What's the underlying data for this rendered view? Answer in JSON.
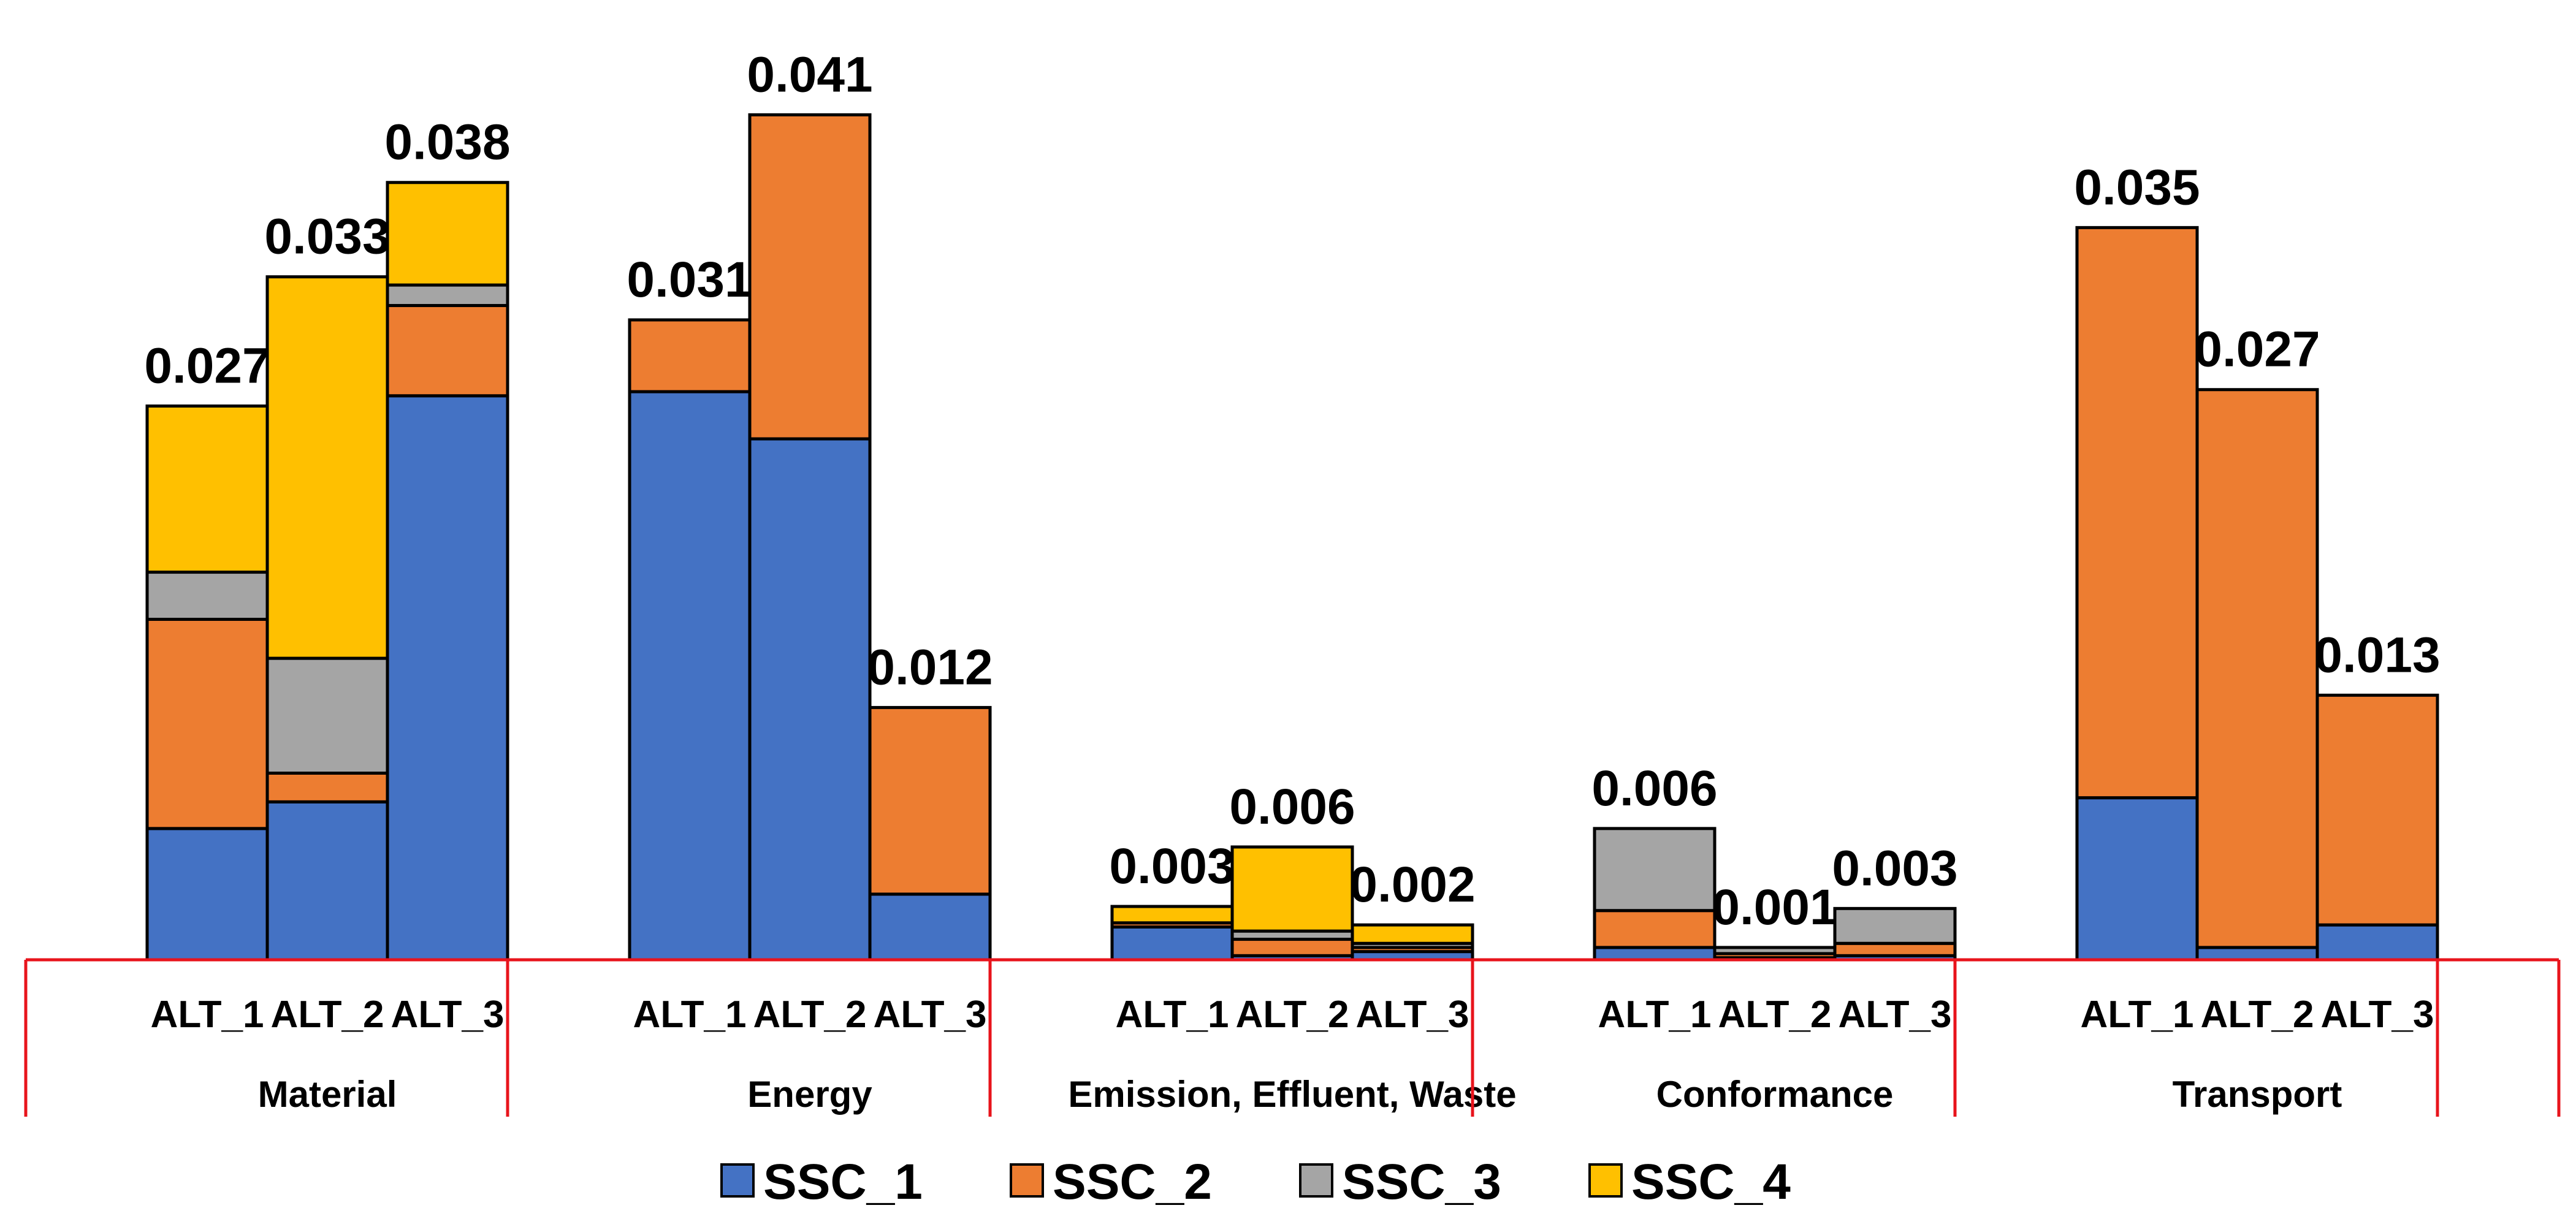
{
  "chart_data": {
    "type": "stacked-bar",
    "title": "",
    "xlabel": "",
    "ylabel": "",
    "ylim": [
      0,
      0.045
    ],
    "grid": false,
    "legend_position": "bottom",
    "series": [
      {
        "name": "SSC_1",
        "color": "#4472C4"
      },
      {
        "name": "SSC_2",
        "color": "#ED7D31"
      },
      {
        "name": "SSC_3",
        "color": "#A5A5A5"
      },
      {
        "name": "SSC_4",
        "color": "#FFC000"
      }
    ],
    "groups": [
      {
        "name": "Material",
        "bars": [
          {
            "label": "ALT_1",
            "total_label": "0.027",
            "values": [
              0.0064,
              0.0102,
              0.0023,
              0.0081
            ]
          },
          {
            "label": "ALT_2",
            "total_label": "0.033",
            "values": [
              0.0077,
              0.0014,
              0.0056,
              0.0186
            ]
          },
          {
            "label": "ALT_3",
            "total_label": "0.038",
            "values": [
              0.0275,
              0.0044,
              0.001,
              0.005
            ]
          }
        ]
      },
      {
        "name": "Energy",
        "bars": [
          {
            "label": "ALT_1",
            "total_label": "0.031",
            "values": [
              0.0277,
              0.0035,
              0,
              0
            ]
          },
          {
            "label": "ALT_2",
            "total_label": "0.041",
            "values": [
              0.0254,
              0.0158,
              0,
              0
            ]
          },
          {
            "label": "ALT_3",
            "total_label": "0.012",
            "values": [
              0.0032,
              0.0091,
              0,
              0
            ]
          }
        ]
      },
      {
        "name": "Emission, Effluent, Waste",
        "bars": [
          {
            "label": "ALT_1",
            "total_label": "0.003",
            "values": [
              0.0016,
              0.0002,
              0,
              0.0008
            ]
          },
          {
            "label": "ALT_2",
            "total_label": "0.006",
            "values": [
              0.0002,
              0.0008,
              0.0004,
              0.0041
            ]
          },
          {
            "label": "ALT_3",
            "total_label": "0.002",
            "values": [
              0.0004,
              0.0002,
              0.0002,
              0.0009
            ]
          }
        ]
      },
      {
        "name": "Conformance",
        "bars": [
          {
            "label": "ALT_1",
            "total_label": "0.006",
            "values": [
              0.0006,
              0.0018,
              0.004,
              0
            ]
          },
          {
            "label": "ALT_2",
            "total_label": "0.001",
            "values": [
              0.0001,
              0.0002,
              0.0003,
              0
            ]
          },
          {
            "label": "ALT_3",
            "total_label": "0.003",
            "values": [
              0.0002,
              0.0006,
              0.0017,
              0
            ]
          }
        ]
      },
      {
        "name": "Transport",
        "bars": [
          {
            "label": "ALT_1",
            "total_label": "0.035",
            "values": [
              0.0079,
              0.0278,
              0,
              0
            ]
          },
          {
            "label": "ALT_2",
            "total_label": "0.027",
            "values": [
              0.0006,
              0.0272,
              0,
              0
            ]
          },
          {
            "label": "ALT_3",
            "total_label": "0.013",
            "values": [
              0.0017,
              0.0112,
              0,
              0
            ]
          }
        ]
      }
    ]
  }
}
